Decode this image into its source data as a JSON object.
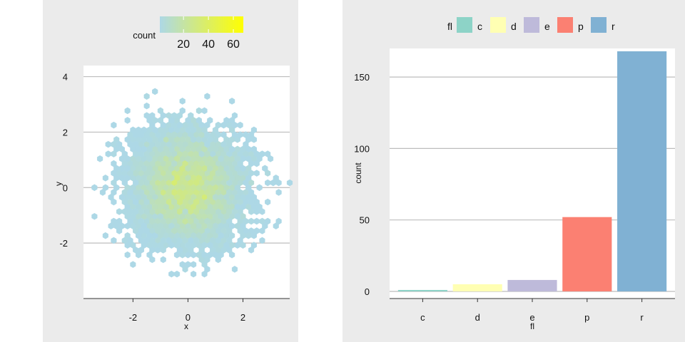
{
  "chart_data": [
    {
      "type": "hexbin",
      "xlabel": "x",
      "ylabel": "y",
      "xlim": [
        -3.8,
        3.7
      ],
      "ylim": [
        -4.0,
        4.4
      ],
      "x_ticks": [
        -2,
        0,
        2
      ],
      "y_ticks": [
        -2,
        0,
        2,
        4
      ],
      "grid": "horizontal",
      "legend": {
        "title": "count",
        "placement": "top",
        "ticks": [
          20,
          40,
          60
        ],
        "range": [
          1,
          68
        ],
        "colors": [
          "#add8e6",
          "#ffff00"
        ]
      },
      "distribution": "bivariate standard normal (~5000 points)"
    },
    {
      "type": "bar",
      "xlabel": "fl",
      "ylabel": "count",
      "categories": [
        "c",
        "d",
        "e",
        "p",
        "r"
      ],
      "values": [
        1,
        5,
        8,
        52,
        168
      ],
      "ylim": [
        -5,
        170
      ],
      "y_ticks": [
        0,
        50,
        100,
        150
      ],
      "colors": [
        "#8dd3c7",
        "#ffffb3",
        "#bebada",
        "#fb8072",
        "#80b1d3"
      ],
      "grid": "horizontal",
      "legend": {
        "title": "fl",
        "placement": "top",
        "entries": [
          "c",
          "d",
          "e",
          "p",
          "r"
        ]
      }
    }
  ]
}
